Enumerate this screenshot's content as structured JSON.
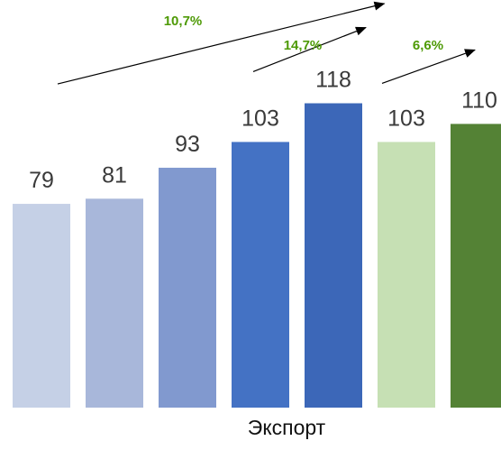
{
  "chart_data": {
    "type": "bar",
    "values": [
      79,
      81,
      93,
      103,
      118,
      103,
      110
    ],
    "colors": [
      "#c5d0e6",
      "#a8b7da",
      "#8199cf",
      "#4472c4",
      "#3c67b8",
      "#c6e0b4",
      "#548235"
    ],
    "xlabel": "Экспорт",
    "ylim": [
      0,
      140
    ],
    "grid": false,
    "legend": "none",
    "growth_annotations": [
      {
        "label": "10,7%",
        "from_bar": 0,
        "to_bar": 4
      },
      {
        "label": "14,7%",
        "from_bar": 3,
        "to_bar": 4
      },
      {
        "label": "6,6%",
        "from_bar": 5,
        "to_bar": 6
      }
    ]
  }
}
